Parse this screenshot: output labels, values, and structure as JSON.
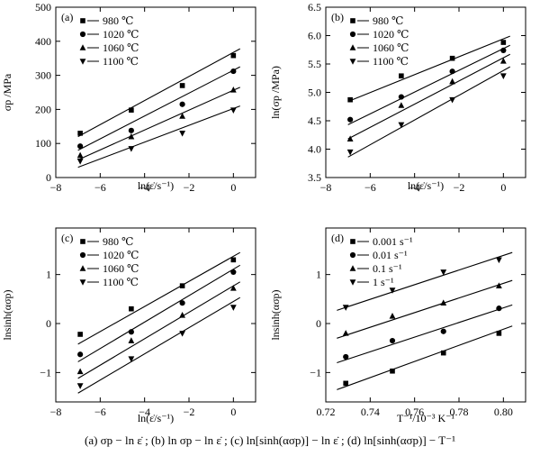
{
  "figure": {
    "caption": "(a)  σp − ln ε̇ ; (b)  ln σp − ln ε̇ ; (c) ln[sinh(ασp)] − ln ε̇ ; (d)  ln[sinh(ασp)] − T⁻¹"
  },
  "chart_data": [
    {
      "type": "scatter",
      "panel_label": "(a)",
      "xlabel": "ln(ε̇/s⁻¹)",
      "ylabel": "σp /MPa",
      "xlim": [
        -8,
        1
      ],
      "ylim": [
        0,
        500
      ],
      "x_ticks": [
        -8,
        -6,
        -4,
        -2,
        0
      ],
      "y_ticks": [
        0,
        100,
        200,
        300,
        400,
        500
      ],
      "x_tick_labels": [
        "−8",
        "−6",
        "−4",
        "−2",
        "0"
      ],
      "y_tick_labels": [
        "0",
        "100",
        "200",
        "300",
        "400",
        "500"
      ],
      "grid": false,
      "legend_position": "top-left",
      "series": [
        {
          "name": "980 ℃",
          "marker": "square",
          "x": [
            -6.9,
            -4.6,
            -2.3,
            0
          ],
          "y": [
            130,
            198,
            270,
            358
          ],
          "fit": [
            [
              -7,
              120
            ],
            [
              0.3,
              378
            ]
          ]
        },
        {
          "name": "1020 ℃",
          "marker": "circle",
          "x": [
            -6.9,
            -4.6,
            -2.3,
            0
          ],
          "y": [
            92,
            138,
            215,
            312
          ],
          "fit": [
            [
              -7,
              80
            ],
            [
              0.3,
              325
            ]
          ]
        },
        {
          "name": "1060 ℃",
          "marker": "triangle-up",
          "x": [
            -6.9,
            -4.6,
            -2.3,
            0
          ],
          "y": [
            65,
            120,
            180,
            257
          ],
          "fit": [
            [
              -7,
              52
            ],
            [
              0.3,
              265
            ]
          ]
        },
        {
          "name": "1100 ℃",
          "marker": "triangle-down",
          "x": [
            -6.9,
            -4.6,
            -2.3,
            0
          ],
          "y": [
            48,
            85,
            130,
            198
          ],
          "fit": [
            [
              -7,
              30
            ],
            [
              0.3,
              210
            ]
          ]
        }
      ]
    },
    {
      "type": "scatter",
      "panel_label": "(b)",
      "xlabel": "ln(ε̇/s⁻¹)",
      "ylabel": "ln(σp /MPa)",
      "xlim": [
        -8,
        1
      ],
      "ylim": [
        3.5,
        6.5
      ],
      "x_ticks": [
        -8,
        -6,
        -4,
        -2,
        0
      ],
      "y_ticks": [
        3.5,
        4.0,
        4.5,
        5.0,
        5.5,
        6.0,
        6.5
      ],
      "x_tick_labels": [
        "−8",
        "−6",
        "−4",
        "−2",
        "0"
      ],
      "y_tick_labels": [
        "3.5",
        "4.0",
        "4.5",
        "5.0",
        "5.5",
        "6.0",
        "6.5"
      ],
      "grid": false,
      "legend_position": "top-left",
      "series": [
        {
          "name": "980 ℃",
          "marker": "square",
          "x": [
            -6.9,
            -4.6,
            -2.3,
            0
          ],
          "y": [
            4.87,
            5.29,
            5.6,
            5.88
          ],
          "fit": [
            [
              -7,
              4.84
            ],
            [
              0.3,
              5.99
            ]
          ]
        },
        {
          "name": "1020 ℃",
          "marker": "circle",
          "x": [
            -6.9,
            -4.6,
            -2.3,
            0
          ],
          "y": [
            4.52,
            4.92,
            5.37,
            5.74
          ],
          "fit": [
            [
              -7,
              4.43
            ],
            [
              0.3,
              5.83
            ]
          ]
        },
        {
          "name": "1060 ℃",
          "marker": "triangle-up",
          "x": [
            -6.9,
            -4.6,
            -2.3,
            0
          ],
          "y": [
            4.18,
            4.77,
            5.19,
            5.55
          ],
          "fit": [
            [
              -7,
              4.18
            ],
            [
              0.3,
              5.67
            ]
          ]
        },
        {
          "name": "1100 ℃",
          "marker": "triangle-down",
          "x": [
            -6.9,
            -4.6,
            -2.3,
            0
          ],
          "y": [
            3.95,
            4.43,
            4.87,
            5.29
          ],
          "fit": [
            [
              -7,
              3.86
            ],
            [
              0.3,
              5.45
            ]
          ]
        }
      ]
    },
    {
      "type": "scatter",
      "panel_label": "(c)",
      "xlabel": "ln(ε̇/s⁻¹)",
      "ylabel": "lnsinh(ασp)",
      "xlim": [
        -8,
        1
      ],
      "ylim": [
        -1.6,
        1.95
      ],
      "x_ticks": [
        -8,
        -6,
        -4,
        -2,
        0
      ],
      "y_ticks": [
        -1,
        0,
        1
      ],
      "x_tick_labels": [
        "−8",
        "−6",
        "−4",
        "−2",
        "0"
      ],
      "y_tick_labels": [
        "−1",
        "0",
        "1"
      ],
      "grid": false,
      "legend_position": "top-left",
      "series": [
        {
          "name": "980 ℃",
          "marker": "square",
          "x": [
            -6.9,
            -4.6,
            -2.3,
            0
          ],
          "y": [
            -0.22,
            0.3,
            0.77,
            1.3
          ],
          "fit": [
            [
              -7,
              -0.42
            ],
            [
              0.3,
              1.45
            ]
          ]
        },
        {
          "name": "1020 ℃",
          "marker": "circle",
          "x": [
            -6.9,
            -4.6,
            -2.3,
            0
          ],
          "y": [
            -0.63,
            -0.17,
            0.42,
            1.05
          ],
          "fit": [
            [
              -7,
              -0.78
            ],
            [
              0.3,
              1.19
            ]
          ]
        },
        {
          "name": "1060 ℃",
          "marker": "triangle-up",
          "x": [
            -6.9,
            -4.6,
            -2.3,
            0
          ],
          "y": [
            -0.98,
            -0.35,
            0.17,
            0.72
          ],
          "fit": [
            [
              -7,
              -1.12
            ],
            [
              0.3,
              0.85
            ]
          ]
        },
        {
          "name": "1100 ℃",
          "marker": "triangle-down",
          "x": [
            -6.9,
            -4.6,
            -2.3,
            0
          ],
          "y": [
            -1.27,
            -0.72,
            -0.2,
            0.33
          ],
          "fit": [
            [
              -7,
              -1.42
            ],
            [
              0.3,
              0.53
            ]
          ]
        }
      ]
    },
    {
      "type": "scatter",
      "panel_label": "(d)",
      "xlabel": "T⁻¹/10⁻³ K⁻¹",
      "ylabel": "lnsinh(ασp)",
      "xlim": [
        0.72,
        0.81
      ],
      "ylim": [
        -1.6,
        1.95
      ],
      "x_ticks": [
        0.72,
        0.74,
        0.76,
        0.78,
        0.8
      ],
      "y_ticks": [
        -1,
        0,
        1
      ],
      "x_tick_labels": [
        "0.72",
        "0.74",
        "0.76",
        "0.78",
        "0.80"
      ],
      "y_tick_labels": [
        "−1",
        "0",
        "1"
      ],
      "grid": false,
      "legend_position": "top-left",
      "series": [
        {
          "name": "0.001 s⁻¹",
          "marker": "square",
          "x": [
            0.729,
            0.75,
            0.773,
            0.798
          ],
          "y": [
            -1.22,
            -0.97,
            -0.6,
            -0.2
          ],
          "fit": [
            [
              0.725,
              -1.35
            ],
            [
              0.804,
              -0.05
            ]
          ]
        },
        {
          "name": "0.01 s⁻¹",
          "marker": "circle",
          "x": [
            0.729,
            0.75,
            0.773,
            0.798
          ],
          "y": [
            -0.68,
            -0.35,
            -0.16,
            0.31
          ],
          "fit": [
            [
              0.725,
              -0.8
            ],
            [
              0.804,
              0.38
            ]
          ]
        },
        {
          "name": "0.1 s⁻¹",
          "marker": "triangle-up",
          "x": [
            0.729,
            0.75,
            0.773,
            0.798
          ],
          "y": [
            -0.2,
            0.15,
            0.42,
            0.77
          ],
          "fit": [
            [
              0.725,
              -0.3
            ],
            [
              0.804,
              0.88
            ]
          ]
        },
        {
          "name": "1 s⁻¹",
          "marker": "triangle-down",
          "x": [
            0.729,
            0.75,
            0.773,
            0.798
          ],
          "y": [
            0.33,
            0.68,
            1.05,
            1.3
          ],
          "fit": [
            [
              0.725,
              0.27
            ],
            [
              0.804,
              1.45
            ]
          ]
        }
      ]
    }
  ]
}
